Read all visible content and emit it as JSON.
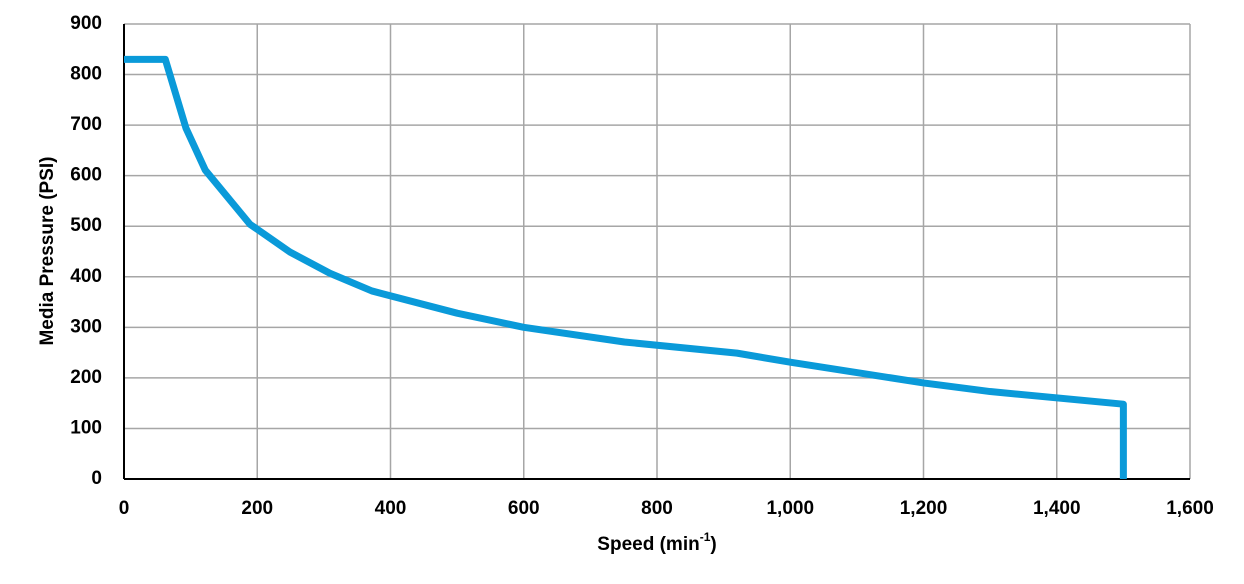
{
  "chart_data": {
    "type": "line",
    "xlabel": {
      "text": "Speed (min",
      "superscript": "-1",
      "suffix": ")"
    },
    "ylabel": "Media Pressure (PSI)",
    "x": [
      0,
      62,
      93,
      122,
      189,
      249,
      309,
      372,
      500,
      600,
      751,
      920,
      1000,
      1200,
      1300,
      1500,
      1500
    ],
    "series": [
      {
        "color": "#0a9ad9",
        "values": [
          830,
          830,
          694,
          611,
          504,
          449,
          407,
          372,
          328,
          300,
          271,
          249,
          231,
          190,
          173,
          148,
          0
        ]
      }
    ],
    "xlim": [
      0,
      1600
    ],
    "xticks": [
      0,
      200,
      400,
      600,
      800,
      {
        "value": 1000,
        "label": "1,000"
      },
      {
        "value": 1200,
        "label": "1,200"
      },
      {
        "value": 1400,
        "label": "1,400"
      },
      {
        "value": 1600,
        "label": "1,600"
      }
    ],
    "ylim": [
      0,
      900
    ],
    "yticks": [
      0,
      100,
      200,
      300,
      400,
      500,
      600,
      700,
      800,
      900
    ],
    "grid": true
  }
}
